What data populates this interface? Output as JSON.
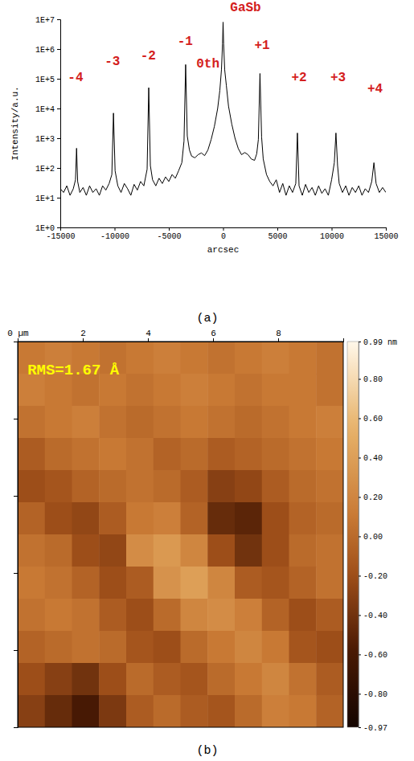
{
  "chart_data": [
    {
      "type": "line",
      "title": "GaSb",
      "caption": "(a)",
      "x_label": "arcsec",
      "y_label": "Intensity/a.u.",
      "log": "y",
      "grid": false,
      "color": "#000000",
      "xlim": [
        -15000,
        15000
      ],
      "ylim": [
        1,
        10000000
      ],
      "xticks": [
        -15000,
        -10000,
        -5000,
        0,
        5000,
        10000,
        15000
      ],
      "yticks": [
        {
          "value": 1,
          "label": "1E+0"
        },
        {
          "value": 10,
          "label": "1E+1"
        },
        {
          "value": 100,
          "label": "1E+2"
        },
        {
          "value": 1000,
          "label": "1E+3"
        },
        {
          "value": 10000,
          "label": "1E+4"
        },
        {
          "value": 100000,
          "label": "1E+5"
        },
        {
          "value": 1000000,
          "label": "1E+6"
        },
        {
          "value": 10000000,
          "label": "1E+7"
        }
      ],
      "x": [
        -15000,
        -14700,
        -14400,
        -14100,
        -13800,
        -13600,
        -13500,
        -13400,
        -13200,
        -12900,
        -12600,
        -12300,
        -12000,
        -11700,
        -11400,
        -11100,
        -10800,
        -10500,
        -10250,
        -10100,
        -9950,
        -9700,
        -9400,
        -9100,
        -8800,
        -8500,
        -8200,
        -7900,
        -7600,
        -7300,
        -7000,
        -6850,
        -6700,
        -6500,
        -6200,
        -5900,
        -5600,
        -5300,
        -5000,
        -4700,
        -4400,
        -4100,
        -3800,
        -3600,
        -3450,
        -3300,
        -3100,
        -2900,
        -2600,
        -2300,
        -2000,
        -1700,
        -1400,
        -1100,
        -800,
        -500,
        -300,
        -150,
        -50,
        0,
        50,
        150,
        300,
        500,
        800,
        1100,
        1400,
        1700,
        2000,
        2300,
        2600,
        2900,
        3100,
        3250,
        3400,
        3550,
        3700,
        4000,
        4300,
        4600,
        4900,
        5200,
        5500,
        5800,
        6100,
        6400,
        6700,
        6850,
        7000,
        7300,
        7600,
        7900,
        8200,
        8500,
        8800,
        9100,
        9400,
        9700,
        10000,
        10250,
        10400,
        10550,
        10700,
        11000,
        11300,
        11600,
        11900,
        12200,
        12500,
        12800,
        13100,
        13400,
        13700,
        13900,
        14100,
        14400,
        14700,
        15000
      ],
      "values": [
        20,
        15,
        25,
        12,
        20,
        40,
        460,
        35,
        15,
        22,
        12,
        25,
        15,
        20,
        12,
        25,
        18,
        30,
        60,
        7000,
        80,
        25,
        15,
        30,
        20,
        12,
        28,
        18,
        35,
        25,
        90,
        50000,
        120,
        40,
        25,
        45,
        30,
        50,
        35,
        60,
        45,
        80,
        150,
        800,
        300000,
        1200,
        400,
        250,
        220,
        280,
        320,
        260,
        400,
        900,
        2500,
        10000,
        40000,
        200000,
        1500000,
        8000000,
        1500000,
        200000,
        60000,
        12000,
        3000,
        1000,
        450,
        280,
        330,
        280,
        200,
        180,
        300,
        900,
        150000,
        1100,
        200,
        60,
        35,
        25,
        40,
        15,
        30,
        12,
        25,
        15,
        30,
        1500,
        25,
        12,
        28,
        15,
        22,
        12,
        25,
        14,
        20,
        12,
        40,
        150,
        1500,
        120,
        30,
        15,
        25,
        12,
        22,
        15,
        25,
        12,
        20,
        15,
        35,
        150,
        30,
        15,
        22,
        15
      ],
      "annotations": [
        {
          "text": "-4",
          "x": -13600,
          "y": 110000
        },
        {
          "text": "-3",
          "x": -10200,
          "y": 380000
        },
        {
          "text": "-2",
          "x": -6900,
          "y": 590000
        },
        {
          "text": "-1",
          "x": -3500,
          "y": 1800000
        },
        {
          "text": "0th",
          "x": -1400,
          "y": 320000
        },
        {
          "text": "+1",
          "x": 3600,
          "y": 1300000
        },
        {
          "text": "+2",
          "x": 7000,
          "y": 110000
        },
        {
          "text": "+3",
          "x": 10600,
          "y": 110000
        },
        {
          "text": "+4",
          "x": 14000,
          "y": 44000
        }
      ]
    },
    {
      "type": "heatmap",
      "caption": "(b)",
      "tick_labels": "x",
      "xlim": [
        0,
        10
      ],
      "ylim": [
        0,
        10
      ],
      "xticks": [
        {
          "value": 0,
          "label": "0 µm"
        },
        2,
        4,
        6,
        8
      ],
      "yticks": [
        2,
        4,
        6,
        8
      ],
      "color_range": [
        -0.97,
        0.99
      ],
      "color_ticks": [
        {
          "value": 0.99,
          "label": "0.99 nm"
        },
        {
          "value": 0.8,
          "label": "0.80"
        },
        {
          "value": 0.6,
          "label": "0.60"
        },
        {
          "value": 0.4,
          "label": "0.40"
        },
        {
          "value": 0.2,
          "label": "0.20"
        },
        {
          "value": 0,
          "label": "0.00"
        },
        {
          "value": -0.2,
          "label": "-0.20"
        },
        {
          "value": -0.4,
          "label": "-0.40"
        },
        {
          "value": -0.6,
          "label": "-0.60"
        },
        {
          "value": -0.8,
          "label": "-0.80"
        },
        {
          "value": -0.97,
          "label": "-0.97"
        }
      ],
      "cells": [
        [
          0.1,
          0.15,
          0.1,
          0.05,
          0.1,
          0.15,
          0.1,
          0.05,
          0.1,
          0.15,
          0.1,
          0.05
        ],
        [
          0.15,
          0.1,
          0.05,
          0.1,
          0.05,
          0.1,
          0.15,
          0.1,
          0.05,
          0.1,
          0.1,
          0.05
        ],
        [
          0.05,
          0.1,
          0.15,
          0.05,
          0.0,
          0.05,
          0.1,
          0.05,
          0.0,
          0.05,
          0.1,
          0.15
        ],
        [
          -0.1,
          0.0,
          0.05,
          0.1,
          0.05,
          -0.05,
          0.0,
          -0.1,
          -0.05,
          0.0,
          0.05,
          0.1
        ],
        [
          -0.2,
          -0.15,
          -0.05,
          0.0,
          0.05,
          0.0,
          -0.1,
          -0.3,
          -0.25,
          -0.1,
          0.0,
          0.05
        ],
        [
          -0.05,
          -0.2,
          -0.25,
          -0.1,
          0.1,
          0.15,
          -0.05,
          -0.45,
          -0.5,
          -0.2,
          -0.05,
          0.0
        ],
        [
          0.05,
          0.0,
          -0.2,
          -0.25,
          0.25,
          0.35,
          0.2,
          -0.2,
          -0.4,
          -0.2,
          0.0,
          0.05
        ],
        [
          0.1,
          0.05,
          -0.05,
          -0.2,
          -0.1,
          0.3,
          0.4,
          0.2,
          -0.1,
          -0.15,
          -0.05,
          0.05
        ],
        [
          0.05,
          0.1,
          0.05,
          -0.1,
          -0.2,
          0.0,
          0.2,
          0.25,
          0.15,
          -0.05,
          -0.2,
          -0.1
        ],
        [
          -0.05,
          0.0,
          0.05,
          0.0,
          -0.15,
          -0.2,
          0.0,
          0.1,
          0.2,
          0.1,
          -0.15,
          -0.2
        ],
        [
          -0.2,
          -0.3,
          -0.4,
          -0.2,
          0.0,
          -0.1,
          -0.15,
          0.0,
          0.1,
          0.2,
          0.05,
          -0.1
        ],
        [
          -0.3,
          -0.45,
          -0.6,
          -0.35,
          -0.1,
          0.0,
          -0.1,
          -0.15,
          0.0,
          0.15,
          0.1,
          -0.05
        ]
      ],
      "annotations": [
        {
          "text": "RMS=1.67 Å",
          "x": 0.3,
          "y": 0.75
        }
      ]
    }
  ]
}
